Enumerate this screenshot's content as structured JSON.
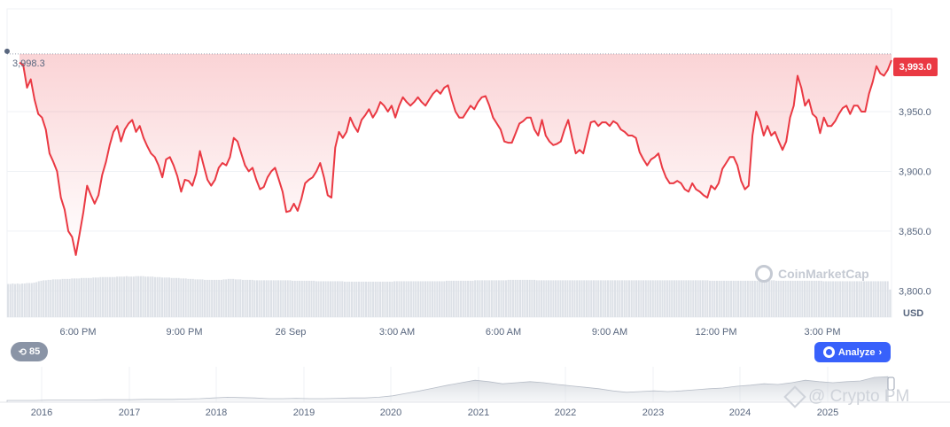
{
  "chart_data": {
    "type": "line",
    "ylabel": "",
    "xlabel": "",
    "currency": "USD",
    "ylim": [
      3778,
      4036
    ],
    "y_ticks": [
      "3,800.0",
      "3,850.0",
      "3,900.0",
      "3,950.0"
    ],
    "y_tick_values": [
      3800,
      3850,
      3900,
      3950
    ],
    "x_ticks": [
      "6:00 PM",
      "9:00 PM",
      "26 Sep",
      "3:00 AM",
      "6:00 AM",
      "9:00 AM",
      "12:00 PM",
      "3:00 PM"
    ],
    "reference_value": 3998.3,
    "reference_label": "3,998.3",
    "current_value": 3993.0,
    "current_label": "3,993.0",
    "line_color": "#ea3943",
    "series": [
      {
        "values": [
          3991,
          3989,
          3970,
          3977,
          3960,
          3948,
          3945,
          3935,
          3915,
          3908,
          3900,
          3878,
          3868,
          3850,
          3845,
          3830,
          3848,
          3866,
          3888,
          3880,
          3873,
          3880,
          3897,
          3908,
          3922,
          3933,
          3938,
          3925,
          3935,
          3940,
          3943,
          3933,
          3938,
          3928,
          3921,
          3915,
          3912,
          3905,
          3895,
          3910,
          3912,
          3905,
          3896,
          3883,
          3893,
          3892,
          3888,
          3898,
          3917,
          3905,
          3893,
          3888,
          3893,
          3903,
          3907,
          3905,
          3912,
          3928,
          3925,
          3915,
          3905,
          3900,
          3903,
          3893,
          3885,
          3887,
          3895,
          3900,
          3903,
          3893,
          3883,
          3866,
          3867,
          3873,
          3867,
          3877,
          3890,
          3893,
          3895,
          3900,
          3907,
          3895,
          3880,
          3878,
          3920,
          3933,
          3928,
          3933,
          3945,
          3938,
          3933,
          3943,
          3947,
          3952,
          3945,
          3950,
          3958,
          3955,
          3950,
          3955,
          3945,
          3955,
          3962,
          3958,
          3955,
          3958,
          3962,
          3958,
          3955,
          3960,
          3965,
          3968,
          3965,
          3970,
          3972,
          3960,
          3950,
          3945,
          3945,
          3950,
          3955,
          3952,
          3958,
          3962,
          3963,
          3955,
          3945,
          3940,
          3935,
          3925,
          3924,
          3924,
          3932,
          3940,
          3942,
          3945,
          3945,
          3935,
          3930,
          3943,
          3930,
          3925,
          3922,
          3923,
          3925,
          3935,
          3943,
          3928,
          3915,
          3918,
          3915,
          3928,
          3941,
          3942,
          3938,
          3941,
          3941,
          3938,
          3942,
          3940,
          3935,
          3933,
          3930,
          3930,
          3928,
          3916,
          3910,
          3905,
          3910,
          3912,
          3915,
          3903,
          3895,
          3890,
          3890,
          3892,
          3890,
          3885,
          3883,
          3890,
          3885,
          3883,
          3880,
          3878,
          3888,
          3885,
          3890,
          3902,
          3907,
          3912,
          3912,
          3905,
          3892,
          3885,
          3888,
          3930,
          3950,
          3942,
          3930,
          3938,
          3930,
          3933,
          3925,
          3918,
          3925,
          3945,
          3955,
          3980,
          3970,
          3955,
          3960,
          3948,
          3945,
          3932,
          3945,
          3938,
          3938,
          3942,
          3948,
          3953,
          3955,
          3948,
          3955,
          3955,
          3950,
          3950,
          3965,
          3975,
          3988,
          3982,
          3980,
          3985,
          3993
        ]
      }
    ],
    "volume_values": [
      0.72,
      0.72,
      0.73,
      0.72,
      0.73,
      0.72,
      0.73,
      0.73,
      0.74,
      0.74,
      0.74,
      0.75,
      0.76,
      0.78,
      0.79,
      0.8,
      0.8,
      0.81,
      0.81,
      0.82,
      0.82,
      0.82,
      0.82,
      0.83,
      0.83,
      0.83,
      0.83,
      0.84,
      0.84,
      0.84,
      0.84,
      0.85,
      0.85,
      0.85,
      0.85,
      0.85,
      0.86,
      0.86,
      0.86,
      0.87,
      0.87,
      0.87,
      0.87,
      0.87,
      0.87,
      0.87,
      0.88,
      0.88,
      0.88,
      0.88,
      0.89,
      0.88,
      0.88,
      0.88,
      0.89,
      0.89,
      0.89,
      0.89,
      0.88,
      0.88,
      0.88,
      0.88,
      0.87,
      0.87,
      0.87,
      0.86,
      0.86,
      0.86,
      0.86,
      0.85,
      0.85,
      0.85,
      0.85,
      0.84,
      0.84,
      0.84,
      0.83,
      0.83,
      0.83,
      0.82,
      0.82,
      0.82,
      0.82,
      0.81,
      0.81,
      0.81,
      0.81,
      0.81,
      0.81,
      0.81,
      0.81,
      0.82,
      0.82,
      0.83,
      0.83,
      0.83,
      0.82,
      0.82,
      0.82,
      0.81,
      0.81,
      0.81,
      0.81,
      0.81,
      0.8,
      0.8,
      0.8,
      0.8,
      0.8,
      0.8,
      0.8,
      0.8,
      0.8,
      0.8,
      0.8,
      0.8,
      0.8,
      0.8,
      0.8,
      0.8,
      0.79,
      0.79,
      0.79,
      0.79,
      0.79,
      0.79,
      0.79,
      0.79,
      0.79,
      0.79,
      0.78,
      0.78,
      0.78,
      0.78,
      0.78,
      0.78,
      0.78,
      0.78,
      0.78,
      0.78,
      0.78,
      0.78,
      0.77,
      0.77,
      0.77,
      0.77,
      0.77,
      0.77,
      0.77,
      0.77,
      0.77,
      0.77,
      0.77,
      0.77,
      0.77,
      0.77,
      0.77,
      0.77,
      0.77,
      0.77,
      0.77,
      0.77,
      0.77,
      0.78,
      0.78,
      0.78,
      0.78,
      0.78,
      0.78,
      0.78,
      0.78,
      0.78,
      0.78,
      0.78,
      0.78,
      0.78,
      0.78,
      0.78,
      0.78,
      0.78,
      0.78,
      0.78,
      0.78,
      0.78,
      0.78,
      0.79,
      0.79,
      0.79,
      0.79,
      0.79,
      0.79,
      0.79,
      0.79,
      0.79,
      0.79,
      0.79,
      0.79,
      0.8,
      0.8,
      0.8,
      0.8,
      0.8,
      0.8,
      0.8,
      0.8,
      0.8,
      0.8,
      0.8,
      0.8,
      0.8,
      0.8,
      0.81,
      0.81,
      0.81,
      0.81,
      0.81,
      0.81,
      0.81,
      0.81,
      0.81,
      0.81,
      0.81,
      0.81,
      0.8,
      0.8,
      0.8,
      0.8,
      0.8,
      0.8,
      0.8,
      0.8,
      0.8,
      0.8,
      0.8,
      0.8,
      0.8,
      0.8,
      0.8,
      0.8,
      0.8,
      0.8,
      0.8,
      0.8,
      0.8,
      0.8,
      0.8,
      0.8,
      0.8,
      0.8,
      0.8,
      0.8,
      0.8,
      0.8,
      0.8,
      0.8,
      0.8,
      0.8,
      0.8,
      0.8,
      0.8,
      0.8,
      0.8,
      0.8,
      0.8,
      0.8,
      0.8,
      0.8,
      0.8,
      0.8,
      0.8,
      0.8,
      0.8,
      0.8,
      0.8,
      0.8,
      0.8,
      0.8,
      0.8,
      0.8,
      0.8,
      0.8,
      0.8,
      0.8,
      0.8,
      0.8,
      0.8,
      0.8,
      0.8,
      0.8,
      0.8,
      0.8,
      0.8,
      0.8,
      0.8,
      0.8,
      0.8,
      0.79,
      0.79,
      0.79,
      0.79,
      0.79,
      0.79,
      0.79,
      0.79,
      0.79,
      0.79,
      0.79,
      0.79,
      0.79,
      0.79,
      0.79,
      0.79,
      0.79,
      0.79,
      0.79,
      0.79,
      0.79,
      0.79,
      0.79,
      0.79,
      0.8,
      0.8,
      0.8,
      0.8,
      0.79,
      0.79,
      0.79,
      0.79,
      0.79,
      0.79,
      0.79,
      0.79,
      0.79,
      0.79,
      0.79,
      0.79,
      0.79,
      0.79,
      0.79,
      0.79,
      0.79,
      0.79,
      0.79,
      0.79,
      0.78,
      0.78,
      0.78,
      0.78,
      0.78,
      0.78,
      0.78,
      0.78,
      0.78,
      0.78,
      0.78,
      0.78,
      0.78,
      0.78,
      0.78,
      0.78,
      0.78,
      0.78,
      0.78,
      0.78,
      0.78,
      0.78,
      0.78,
      0.78,
      0.78,
      0.78,
      0.78,
      0.78,
      0.6
    ],
    "navigator": {
      "x_ticks": [
        "2016",
        "2017",
        "2018",
        "2019",
        "2020",
        "2021",
        "2022",
        "2023",
        "2024",
        "2025"
      ],
      "profile": [
        0.05,
        0.05,
        0.05,
        0.06,
        0.06,
        0.06,
        0.06,
        0.07,
        0.07,
        0.07,
        0.08,
        0.08,
        0.08,
        0.09,
        0.1,
        0.12,
        0.14,
        0.13,
        0.12,
        0.1,
        0.1,
        0.11,
        0.1,
        0.1,
        0.11,
        0.12,
        0.12,
        0.14,
        0.18,
        0.25,
        0.32,
        0.4,
        0.48,
        0.55,
        0.62,
        0.58,
        0.52,
        0.55,
        0.58,
        0.55,
        0.5,
        0.46,
        0.42,
        0.38,
        0.32,
        0.28,
        0.3,
        0.32,
        0.3,
        0.32,
        0.35,
        0.38,
        0.4,
        0.45,
        0.48,
        0.52,
        0.5,
        0.55,
        0.62,
        0.58,
        0.55,
        0.58,
        0.6,
        0.7,
        0.72
      ]
    }
  },
  "badges": {
    "history_count": "85",
    "analyze_label": "Analyze",
    "analyze_chevron": "›"
  },
  "watermarks": {
    "brand": "CoinMarketCap",
    "overlay": "@ Crypto PM"
  },
  "colors": {
    "line": "#ea3943",
    "analyze": "#3861fb",
    "badge": "#8a94a6"
  }
}
